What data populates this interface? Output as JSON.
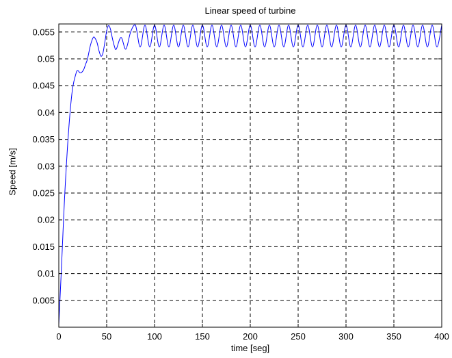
{
  "chart_data": {
    "type": "line",
    "title": "Linear speed of turbine",
    "xlabel": "time [seg]",
    "ylabel": "Speed [m/s]",
    "xlim": [
      0,
      400
    ],
    "ylim": [
      0,
      0.0565
    ],
    "grid": true,
    "grid_style": "dashed",
    "x_ticks": [
      0,
      50,
      100,
      150,
      200,
      250,
      300,
      350,
      400
    ],
    "x_tick_labels": [
      "0",
      "50",
      "100",
      "150",
      "200",
      "250",
      "300",
      "350",
      "400"
    ],
    "y_ticks": [
      0.005,
      0.01,
      0.015,
      0.02,
      0.025,
      0.03,
      0.035,
      0.04,
      0.045,
      0.05,
      0.055
    ],
    "y_tick_labels": [
      "0.005",
      "0.01",
      "0.015",
      "0.02",
      "0.025",
      "0.03",
      "0.035",
      "0.04",
      "0.045",
      "0.05",
      "0.055"
    ],
    "series": [
      {
        "color": "#0000ff",
        "x": [
          0,
          3,
          6,
          10,
          14,
          18,
          20,
          22,
          24,
          26,
          28,
          30,
          33,
          36,
          38,
          40,
          42,
          44,
          46,
          48,
          50,
          52,
          54,
          56,
          58,
          60,
          65,
          70,
          75,
          80,
          85,
          90,
          95,
          100,
          105,
          110,
          115,
          120,
          125,
          130,
          135,
          140,
          145,
          150,
          155,
          160,
          165,
          170,
          175,
          180,
          185,
          190,
          195,
          200,
          205,
          210,
          215,
          220,
          225,
          230,
          235,
          240,
          245,
          250,
          255,
          260,
          265,
          270,
          275,
          280,
          285,
          290,
          295,
          300,
          305,
          310,
          315,
          320,
          325,
          330,
          335,
          340,
          345,
          350,
          355,
          360,
          365,
          370,
          375,
          380,
          385,
          390,
          395,
          400
        ],
        "y": [
          0.0005,
          0.012,
          0.024,
          0.036,
          0.044,
          0.0473,
          0.0478,
          0.0474,
          0.0475,
          0.048,
          0.049,
          0.05,
          0.0525,
          0.054,
          0.0538,
          0.053,
          0.0515,
          0.0505,
          0.051,
          0.053,
          0.0552,
          0.0562,
          0.0555,
          0.0538,
          0.0524,
          0.0518,
          0.054,
          0.0518,
          0.055,
          0.0563,
          0.0522,
          0.0563,
          0.0522,
          0.0563,
          0.0522,
          0.0563,
          0.0522,
          0.0563,
          0.0522,
          0.0563,
          0.0522,
          0.0563,
          0.0522,
          0.0563,
          0.0522,
          0.0563,
          0.0522,
          0.0563,
          0.0522,
          0.0563,
          0.0522,
          0.0563,
          0.0522,
          0.0563,
          0.0522,
          0.0563,
          0.0522,
          0.0563,
          0.0522,
          0.0563,
          0.0522,
          0.0563,
          0.0522,
          0.0563,
          0.0522,
          0.0563,
          0.0522,
          0.0563,
          0.0522,
          0.0563,
          0.0522,
          0.0563,
          0.0522,
          0.0563,
          0.0522,
          0.0563,
          0.0522,
          0.0563,
          0.0522,
          0.0563,
          0.0522,
          0.0563,
          0.0522,
          0.0563,
          0.0522,
          0.0563,
          0.0522,
          0.0563,
          0.0522,
          0.0563,
          0.0522,
          0.0563,
          0.0522,
          0.0563
        ]
      }
    ]
  }
}
